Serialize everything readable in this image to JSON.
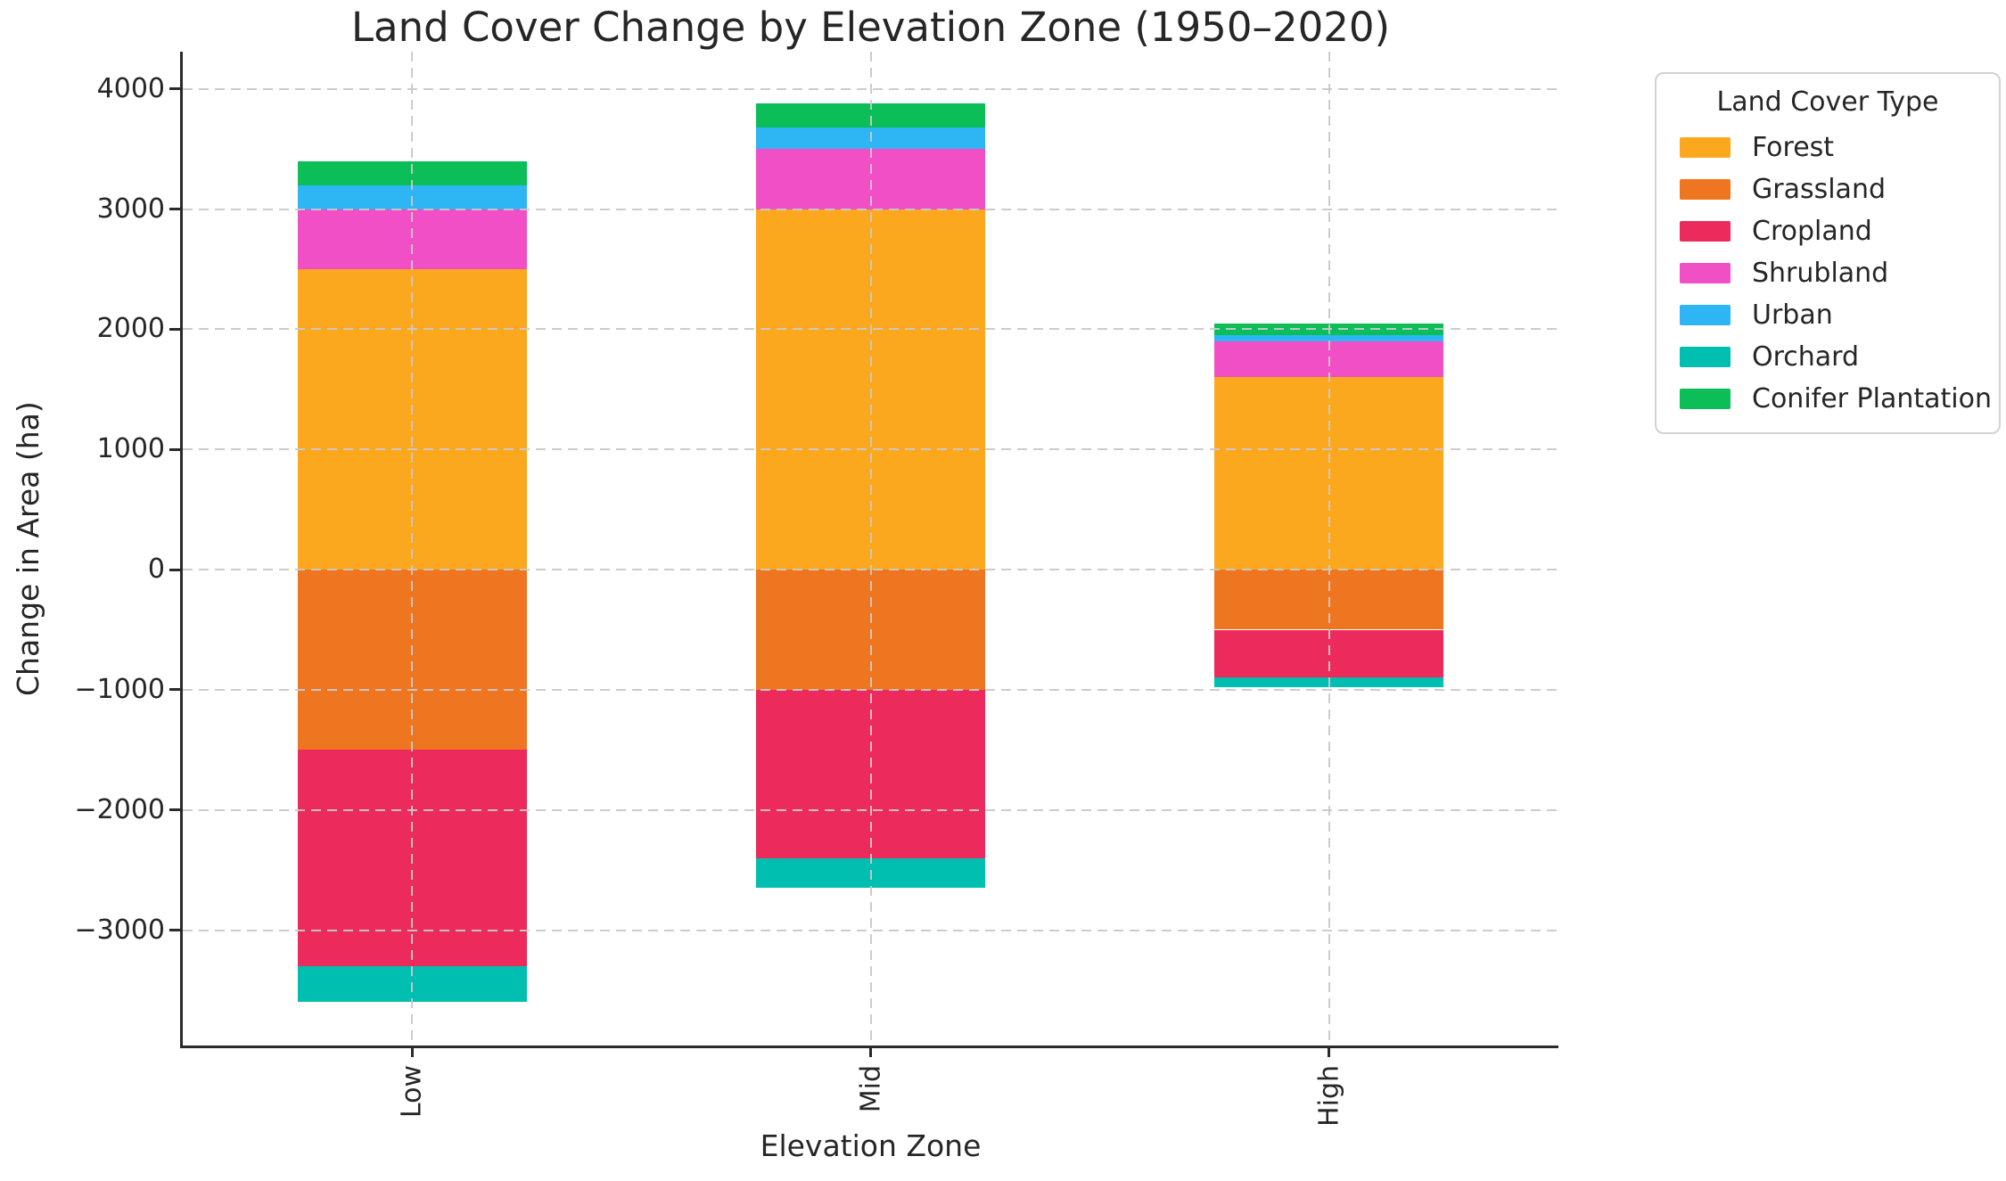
{
  "chart_data": {
    "type": "bar",
    "stacked": true,
    "title": "Land Cover Change by Elevation Zone (1950–2020)",
    "xlabel": "Elevation Zone",
    "ylabel": "Change in Area (ha)",
    "categories": [
      "Low",
      "Mid",
      "High"
    ],
    "series": [
      {
        "name": "Forest",
        "color": "#FBA81E",
        "values": [
          2500,
          3000,
          1600
        ]
      },
      {
        "name": "Grassland",
        "color": "#EF7621",
        "values": [
          -1500,
          -1000,
          -500
        ]
      },
      {
        "name": "Cropland",
        "color": "#EC2A5B",
        "values": [
          -1800,
          -1400,
          -400
        ]
      },
      {
        "name": "Shrubland",
        "color": "#F04FC5",
        "values": [
          500,
          500,
          300
        ]
      },
      {
        "name": "Urban",
        "color": "#2EB5F3",
        "values": [
          200,
          180,
          50
        ]
      },
      {
        "name": "Orchard",
        "color": "#00BFB1",
        "values": [
          -300,
          -250,
          -80
        ]
      },
      {
        "name": "Conifer Plantation",
        "color": "#0BBE58",
        "values": [
          200,
          200,
          100
        ]
      }
    ],
    "legend": {
      "title": "Land Cover Type",
      "position": "outside-upper-right"
    },
    "ylim": [
      -3960,
      4310
    ],
    "yticks": {
      "values": [
        -3000,
        -2000,
        -1000,
        0,
        1000,
        2000,
        3000,
        4000
      ],
      "labels": [
        "−3000",
        "−2000",
        "−1000",
        "0",
        "1000",
        "2000",
        "3000",
        "4000"
      ]
    },
    "xtick_rotation": 90,
    "grid": {
      "style": "dashed",
      "color": "#c9c9c9",
      "horizontal": true,
      "vertical": true
    },
    "bar_width_fraction": 0.5,
    "background": "#ffffff"
  }
}
